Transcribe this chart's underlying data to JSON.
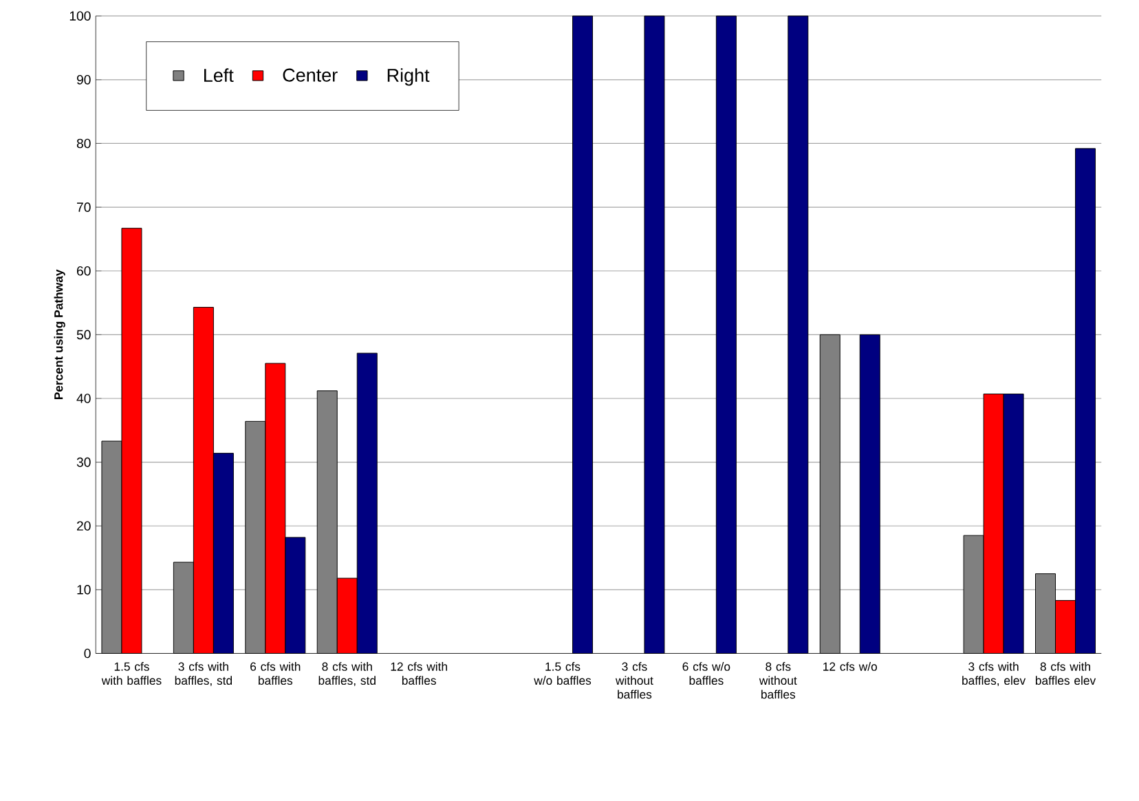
{
  "chart_data": {
    "type": "bar",
    "ylabel": "Percent using Pathway",
    "categories": [
      "1.5 cfs with baffles",
      "3 cfs with baffles, std",
      "6 cfs with baffles",
      "8 cfs with baffles, std",
      "12 cfs with baffles",
      null,
      "1.5 cfs w/o baffles",
      "3 cfs without baffles",
      "6 cfs w/o baffles",
      "8 cfs without baffles",
      "12 cfs w/o",
      null,
      "3 cfs with baffles, elev",
      "8 cfs with baffles elev"
    ],
    "series": [
      {
        "name": "Left",
        "color": "#808080",
        "values": [
          33.3,
          14.3,
          36.4,
          41.2,
          null,
          null,
          null,
          null,
          null,
          null,
          50,
          null,
          18.5,
          12.5
        ]
      },
      {
        "name": "Center",
        "color": "#ff0000",
        "values": [
          66.7,
          54.3,
          45.5,
          11.8,
          null,
          null,
          null,
          null,
          null,
          null,
          null,
          null,
          40.7,
          8.3
        ]
      },
      {
        "name": "Right",
        "color": "#000080",
        "values": [
          null,
          31.4,
          18.2,
          47.1,
          null,
          null,
          100,
          100,
          100,
          100,
          50,
          null,
          40.7,
          79.2
        ]
      }
    ],
    "ylim": [
      0,
      100
    ],
    "yticks": [
      0,
      10,
      20,
      30,
      40,
      50,
      60,
      70,
      80,
      90,
      100
    ],
    "grid": "y",
    "legend": "top left"
  }
}
